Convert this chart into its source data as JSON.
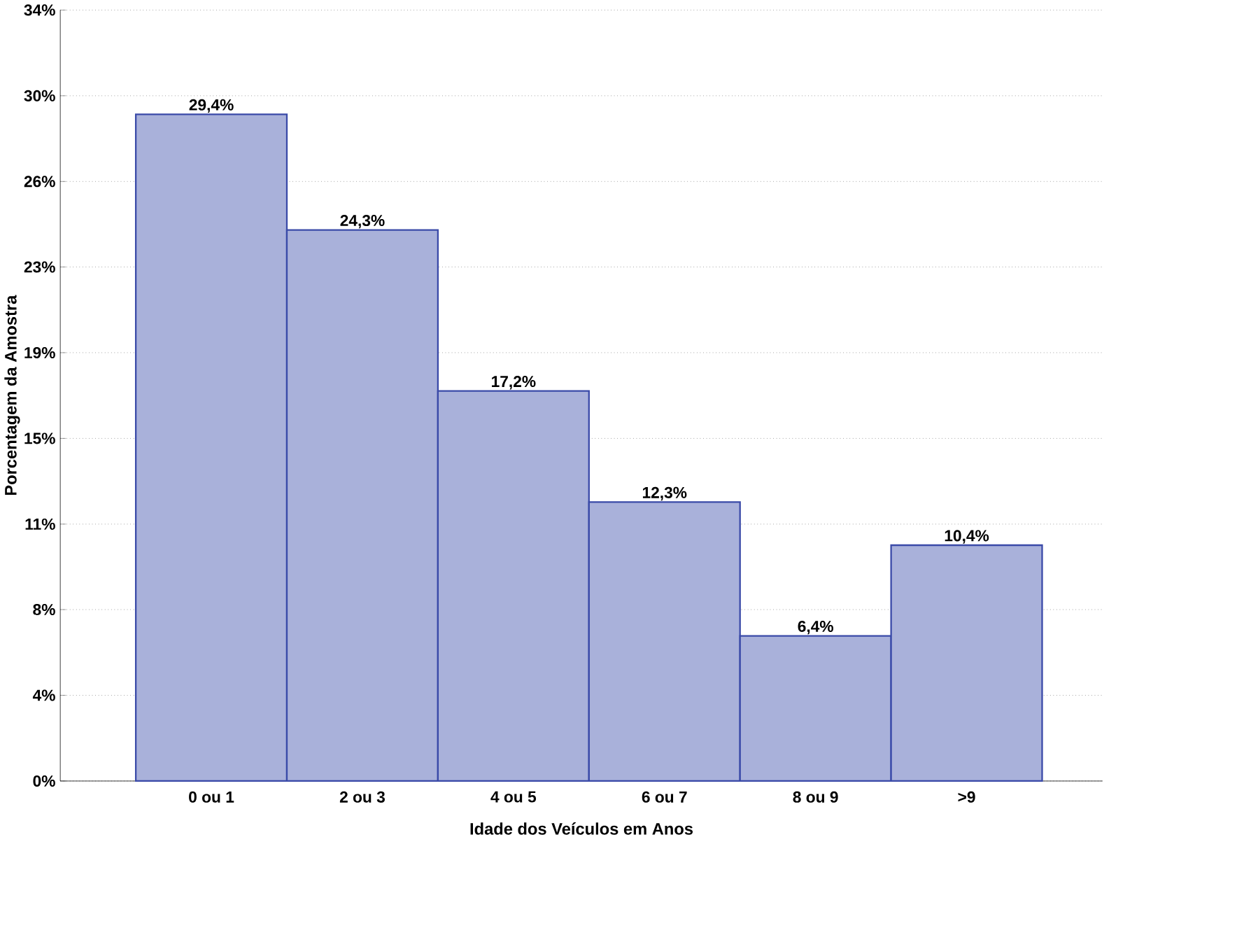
{
  "chart_data": {
    "type": "bar",
    "xlabel": "Idade dos Veículos em Anos",
    "ylabel": "Porcentagem da Amostra",
    "categories": [
      "0 ou 1",
      "2 ou 3",
      "4 ou 5",
      "6 ou 7",
      "8 ou 9",
      ">9"
    ],
    "values": [
      29.4,
      24.3,
      17.2,
      12.3,
      6.4,
      10.4
    ],
    "value_labels": [
      "29,4%",
      "24,3%",
      "17,2%",
      "12,3%",
      "6,4%",
      "10,4%"
    ],
    "color": "#a9b1da",
    "ylim": [
      0,
      34
    ],
    "yticks": [
      {
        "value": 0,
        "label": "0%"
      },
      {
        "value": 3.78,
        "label": "4%"
      },
      {
        "value": 7.56,
        "label": "8%"
      },
      {
        "value": 11.33,
        "label": "11%"
      },
      {
        "value": 15.11,
        "label": "15%"
      },
      {
        "value": 18.89,
        "label": "19%"
      },
      {
        "value": 22.67,
        "label": "23%"
      },
      {
        "value": 26.44,
        "label": "26%"
      },
      {
        "value": 30.22,
        "label": "30%"
      },
      {
        "value": 34,
        "label": "34%"
      }
    ],
    "grid": "y"
  }
}
